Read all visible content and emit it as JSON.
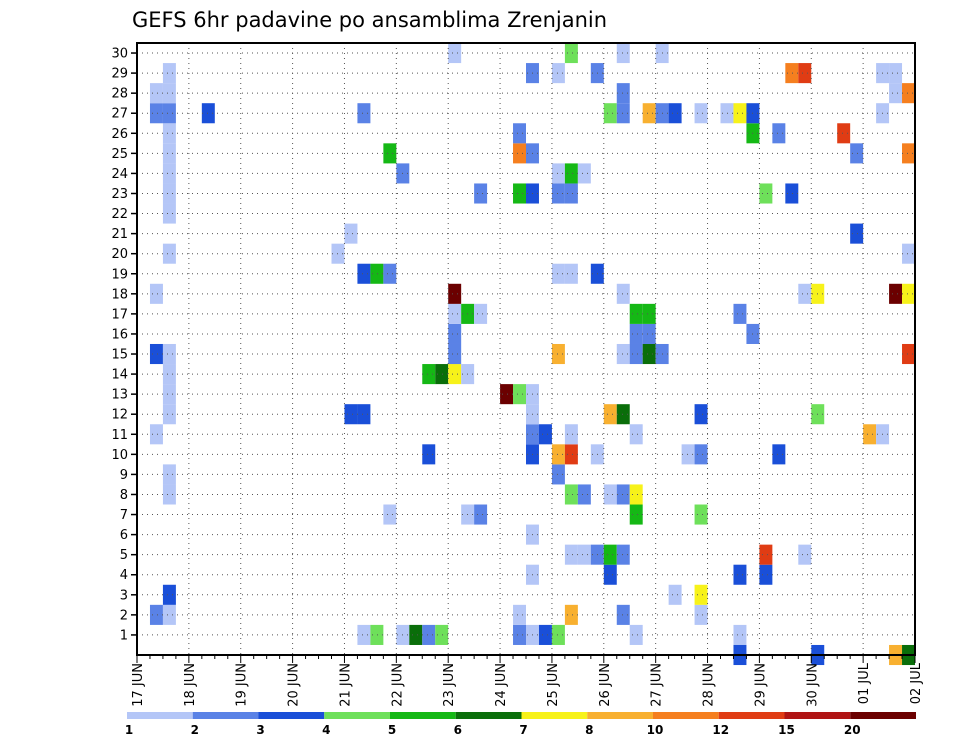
{
  "chart_data": {
    "type": "heatmap",
    "title": "GEFS 6hr padavine po ansamblima Zrenjanin",
    "x_axis": {
      "ticks": [
        "17 JUN",
        "18 JUN",
        "19 JUN",
        "20 JUN",
        "21 JUN",
        "22 JUN",
        "23 JUN",
        "24 JUN",
        "25 JUN",
        "26 JUN",
        "27 JUN",
        "28 JUN",
        "29 JUN",
        "30 JUN",
        "01 JUL",
        "02 JUL"
      ],
      "steps_per_day": 4
    },
    "y_axis": {
      "ticks": [
        "1",
        "2",
        "3",
        "4",
        "5",
        "6",
        "7",
        "8",
        "9",
        "10",
        "11",
        "12",
        "13",
        "14",
        "15",
        "16",
        "17",
        "18",
        "19",
        "20",
        "21",
        "22",
        "23",
        "24",
        "25",
        "26",
        "27",
        "28",
        "29",
        "30"
      ],
      "range": [
        0,
        30
      ]
    },
    "grid": true,
    "colorbar": {
      "labels": [
        "1",
        "2",
        "3",
        "4",
        "5",
        "6",
        "7",
        "8",
        "10",
        "12",
        "15",
        "20"
      ],
      "colors": [
        "#b4c6f7",
        "#5a82e6",
        "#1a4fd8",
        "#6ee05a",
        "#15b815",
        "#0a6e0a",
        "#f7f21a",
        "#f8b030",
        "#f57f1f",
        "#e03c14",
        "#b01414",
        "#6b0000"
      ]
    },
    "cells": [
      {
        "m": 1,
        "t": 17,
        "c": 1
      },
      {
        "m": 1,
        "t": 18,
        "c": 4
      },
      {
        "m": 1,
        "t": 20,
        "c": 1
      },
      {
        "m": 1,
        "t": 21,
        "c": 6
      },
      {
        "m": 1,
        "t": 22,
        "c": 2
      },
      {
        "m": 1,
        "t": 23,
        "c": 4
      },
      {
        "m": 1,
        "t": 29,
        "c": 2
      },
      {
        "m": 1,
        "t": 30,
        "c": 1
      },
      {
        "m": 1,
        "t": 31,
        "c": 3
      },
      {
        "m": 1,
        "t": 32,
        "c": 4
      },
      {
        "m": 1,
        "t": 38,
        "c": 1
      },
      {
        "m": 1,
        "t": 46,
        "c": 1
      },
      {
        "m": 2,
        "t": 1,
        "c": 2
      },
      {
        "m": 2,
        "t": 2,
        "c": 1
      },
      {
        "m": 2,
        "t": 29,
        "c": 1
      },
      {
        "m": 2,
        "t": 33,
        "c": 8
      },
      {
        "m": 2,
        "t": 37,
        "c": 2
      },
      {
        "m": 2,
        "t": 43,
        "c": 1
      },
      {
        "m": 3,
        "t": 2,
        "c": 3
      },
      {
        "m": 3,
        "t": 41,
        "c": 1
      },
      {
        "m": 3,
        "t": 43,
        "c": 7
      },
      {
        "m": 4,
        "t": 30,
        "c": 1
      },
      {
        "m": 4,
        "t": 36,
        "c": 3
      },
      {
        "m": 4,
        "t": 46,
        "c": 3
      },
      {
        "m": 4,
        "t": 48,
        "c": 3
      },
      {
        "m": 5,
        "t": 33,
        "c": 1
      },
      {
        "m": 5,
        "t": 34,
        "c": 1
      },
      {
        "m": 5,
        "t": 35,
        "c": 2
      },
      {
        "m": 5,
        "t": 36,
        "c": 5
      },
      {
        "m": 5,
        "t": 37,
        "c": 2
      },
      {
        "m": 5,
        "t": 48,
        "c": 10
      },
      {
        "m": 5,
        "t": 51,
        "c": 1
      },
      {
        "m": 6,
        "t": 30,
        "c": 1
      },
      {
        "m": 7,
        "t": 19,
        "c": 1
      },
      {
        "m": 7,
        "t": 25,
        "c": 1
      },
      {
        "m": 7,
        "t": 26,
        "c": 2
      },
      {
        "m": 7,
        "t": 38,
        "c": 5
      },
      {
        "m": 7,
        "t": 43,
        "c": 4
      },
      {
        "m": 8,
        "t": 2,
        "c": 1
      },
      {
        "m": 8,
        "t": 33,
        "c": 4
      },
      {
        "m": 8,
        "t": 34,
        "c": 2
      },
      {
        "m": 8,
        "t": 36,
        "c": 1
      },
      {
        "m": 8,
        "t": 37,
        "c": 2
      },
      {
        "m": 8,
        "t": 38,
        "c": 7
      },
      {
        "m": 9,
        "t": 2,
        "c": 1
      },
      {
        "m": 9,
        "t": 32,
        "c": 2
      },
      {
        "m": 10,
        "t": 22,
        "c": 3
      },
      {
        "m": 10,
        "t": 30,
        "c": 3
      },
      {
        "m": 10,
        "t": 32,
        "c": 8
      },
      {
        "m": 10,
        "t": 33,
        "c": 10
      },
      {
        "m": 10,
        "t": 35,
        "c": 1
      },
      {
        "m": 10,
        "t": 42,
        "c": 1
      },
      {
        "m": 10,
        "t": 43,
        "c": 2
      },
      {
        "m": 10,
        "t": 49,
        "c": 3
      },
      {
        "m": 11,
        "t": 1,
        "c": 1
      },
      {
        "m": 11,
        "t": 30,
        "c": 2
      },
      {
        "m": 11,
        "t": 31,
        "c": 3
      },
      {
        "m": 11,
        "t": 33,
        "c": 1
      },
      {
        "m": 11,
        "t": 38,
        "c": 1
      },
      {
        "m": 11,
        "t": 56,
        "c": 8
      },
      {
        "m": 11,
        "t": 57,
        "c": 1
      },
      {
        "m": 12,
        "t": 2,
        "c": 1
      },
      {
        "m": 12,
        "t": 16,
        "c": 3
      },
      {
        "m": 12,
        "t": 17,
        "c": 3
      },
      {
        "m": 12,
        "t": 30,
        "c": 1
      },
      {
        "m": 12,
        "t": 36,
        "c": 8
      },
      {
        "m": 12,
        "t": 37,
        "c": 6
      },
      {
        "m": 12,
        "t": 43,
        "c": 3
      },
      {
        "m": 12,
        "t": 52,
        "c": 4
      },
      {
        "m": 13,
        "t": 2,
        "c": 1
      },
      {
        "m": 13,
        "t": 28,
        "c": 12
      },
      {
        "m": 13,
        "t": 29,
        "c": 4
      },
      {
        "m": 13,
        "t": 30,
        "c": 1
      },
      {
        "m": 14,
        "t": 2,
        "c": 1
      },
      {
        "m": 14,
        "t": 22,
        "c": 5
      },
      {
        "m": 14,
        "t": 23,
        "c": 6
      },
      {
        "m": 14,
        "t": 24,
        "c": 7
      },
      {
        "m": 14,
        "t": 25,
        "c": 1
      },
      {
        "m": 15,
        "t": 1,
        "c": 3
      },
      {
        "m": 15,
        "t": 2,
        "c": 1
      },
      {
        "m": 15,
        "t": 24,
        "c": 2
      },
      {
        "m": 15,
        "t": 32,
        "c": 8
      },
      {
        "m": 15,
        "t": 37,
        "c": 1
      },
      {
        "m": 15,
        "t": 38,
        "c": 2
      },
      {
        "m": 15,
        "t": 39,
        "c": 6
      },
      {
        "m": 15,
        "t": 40,
        "c": 2
      },
      {
        "m": 15,
        "t": 59,
        "c": 10
      },
      {
        "m": 16,
        "t": 24,
        "c": 2
      },
      {
        "m": 16,
        "t": 38,
        "c": 2
      },
      {
        "m": 16,
        "t": 39,
        "c": 2
      },
      {
        "m": 16,
        "t": 47,
        "c": 2
      },
      {
        "m": 17,
        "t": 24,
        "c": 1
      },
      {
        "m": 17,
        "t": 25,
        "c": 5
      },
      {
        "m": 17,
        "t": 26,
        "c": 1
      },
      {
        "m": 17,
        "t": 38,
        "c": 5
      },
      {
        "m": 17,
        "t": 39,
        "c": 5
      },
      {
        "m": 17,
        "t": 46,
        "c": 2
      },
      {
        "m": 18,
        "t": 1,
        "c": 1
      },
      {
        "m": 18,
        "t": 24,
        "c": 12
      },
      {
        "m": 18,
        "t": 37,
        "c": 1
      },
      {
        "m": 18,
        "t": 51,
        "c": 1
      },
      {
        "m": 18,
        "t": 52,
        "c": 7
      },
      {
        "m": 18,
        "t": 58,
        "c": 12
      },
      {
        "m": 18,
        "t": 59,
        "c": 7
      },
      {
        "m": 19,
        "t": 17,
        "c": 3
      },
      {
        "m": 19,
        "t": 18,
        "c": 5
      },
      {
        "m": 19,
        "t": 19,
        "c": 2
      },
      {
        "m": 19,
        "t": 32,
        "c": 1
      },
      {
        "m": 19,
        "t": 33,
        "c": 1
      },
      {
        "m": 19,
        "t": 35,
        "c": 3
      },
      {
        "m": 20,
        "t": 2,
        "c": 1
      },
      {
        "m": 20,
        "t": 15,
        "c": 1
      },
      {
        "m": 20,
        "t": 59,
        "c": 1
      },
      {
        "m": 21,
        "t": 16,
        "c": 1
      },
      {
        "m": 21,
        "t": 55,
        "c": 3
      },
      {
        "m": 22,
        "t": 2,
        "c": 1
      },
      {
        "m": 23,
        "t": 2,
        "c": 1
      },
      {
        "m": 23,
        "t": 26,
        "c": 2
      },
      {
        "m": 23,
        "t": 29,
        "c": 5
      },
      {
        "m": 23,
        "t": 30,
        "c": 3
      },
      {
        "m": 23,
        "t": 32,
        "c": 2
      },
      {
        "m": 23,
        "t": 33,
        "c": 2
      },
      {
        "m": 23,
        "t": 48,
        "c": 4
      },
      {
        "m": 23,
        "t": 50,
        "c": 3
      },
      {
        "m": 24,
        "t": 2,
        "c": 1
      },
      {
        "m": 24,
        "t": 20,
        "c": 2
      },
      {
        "m": 24,
        "t": 32,
        "c": 1
      },
      {
        "m": 24,
        "t": 33,
        "c": 5
      },
      {
        "m": 24,
        "t": 34,
        "c": 1
      },
      {
        "m": 25,
        "t": 2,
        "c": 1
      },
      {
        "m": 25,
        "t": 19,
        "c": 5
      },
      {
        "m": 25,
        "t": 29,
        "c": 9
      },
      {
        "m": 25,
        "t": 30,
        "c": 2
      },
      {
        "m": 25,
        "t": 55,
        "c": 2
      },
      {
        "m": 25,
        "t": 59,
        "c": 9
      },
      {
        "m": 26,
        "t": 2,
        "c": 1
      },
      {
        "m": 26,
        "t": 29,
        "c": 2
      },
      {
        "m": 26,
        "t": 47,
        "c": 5
      },
      {
        "m": 26,
        "t": 49,
        "c": 2
      },
      {
        "m": 26,
        "t": 54,
        "c": 10
      },
      {
        "m": 27,
        "t": 1,
        "c": 2
      },
      {
        "m": 27,
        "t": 2,
        "c": 2
      },
      {
        "m": 27,
        "t": 5,
        "c": 3
      },
      {
        "m": 27,
        "t": 17,
        "c": 2
      },
      {
        "m": 27,
        "t": 36,
        "c": 4
      },
      {
        "m": 27,
        "t": 37,
        "c": 2
      },
      {
        "m": 27,
        "t": 39,
        "c": 8
      },
      {
        "m": 27,
        "t": 40,
        "c": 2
      },
      {
        "m": 27,
        "t": 41,
        "c": 3
      },
      {
        "m": 27,
        "t": 43,
        "c": 1
      },
      {
        "m": 27,
        "t": 45,
        "c": 1
      },
      {
        "m": 27,
        "t": 46,
        "c": 7
      },
      {
        "m": 27,
        "t": 47,
        "c": 3
      },
      {
        "m": 27,
        "t": 57,
        "c": 1
      },
      {
        "m": 28,
        "t": 1,
        "c": 1
      },
      {
        "m": 28,
        "t": 2,
        "c": 1
      },
      {
        "m": 28,
        "t": 37,
        "c": 2
      },
      {
        "m": 28,
        "t": 58,
        "c": 1
      },
      {
        "m": 28,
        "t": 59,
        "c": 9
      },
      {
        "m": 29,
        "t": 2,
        "c": 1
      },
      {
        "m": 29,
        "t": 30,
        "c": 2
      },
      {
        "m": 29,
        "t": 32,
        "c": 1
      },
      {
        "m": 29,
        "t": 35,
        "c": 2
      },
      {
        "m": 29,
        "t": 50,
        "c": 9
      },
      {
        "m": 29,
        "t": 51,
        "c": 10
      },
      {
        "m": 29,
        "t": 57,
        "c": 1
      },
      {
        "m": 29,
        "t": 58,
        "c": 1
      },
      {
        "m": 30,
        "t": 24,
        "c": 1
      },
      {
        "m": 30,
        "t": 33,
        "c": 4
      },
      {
        "m": 30,
        "t": 37,
        "c": 1
      },
      {
        "m": 30,
        "t": 40,
        "c": 1
      },
      {
        "m": 0,
        "t": 46,
        "c": 3
      },
      {
        "m": 0,
        "t": 52,
        "c": 3
      },
      {
        "m": 0,
        "t": 58,
        "c": 8
      },
      {
        "m": 0,
        "t": 59,
        "c": 6
      }
    ]
  }
}
